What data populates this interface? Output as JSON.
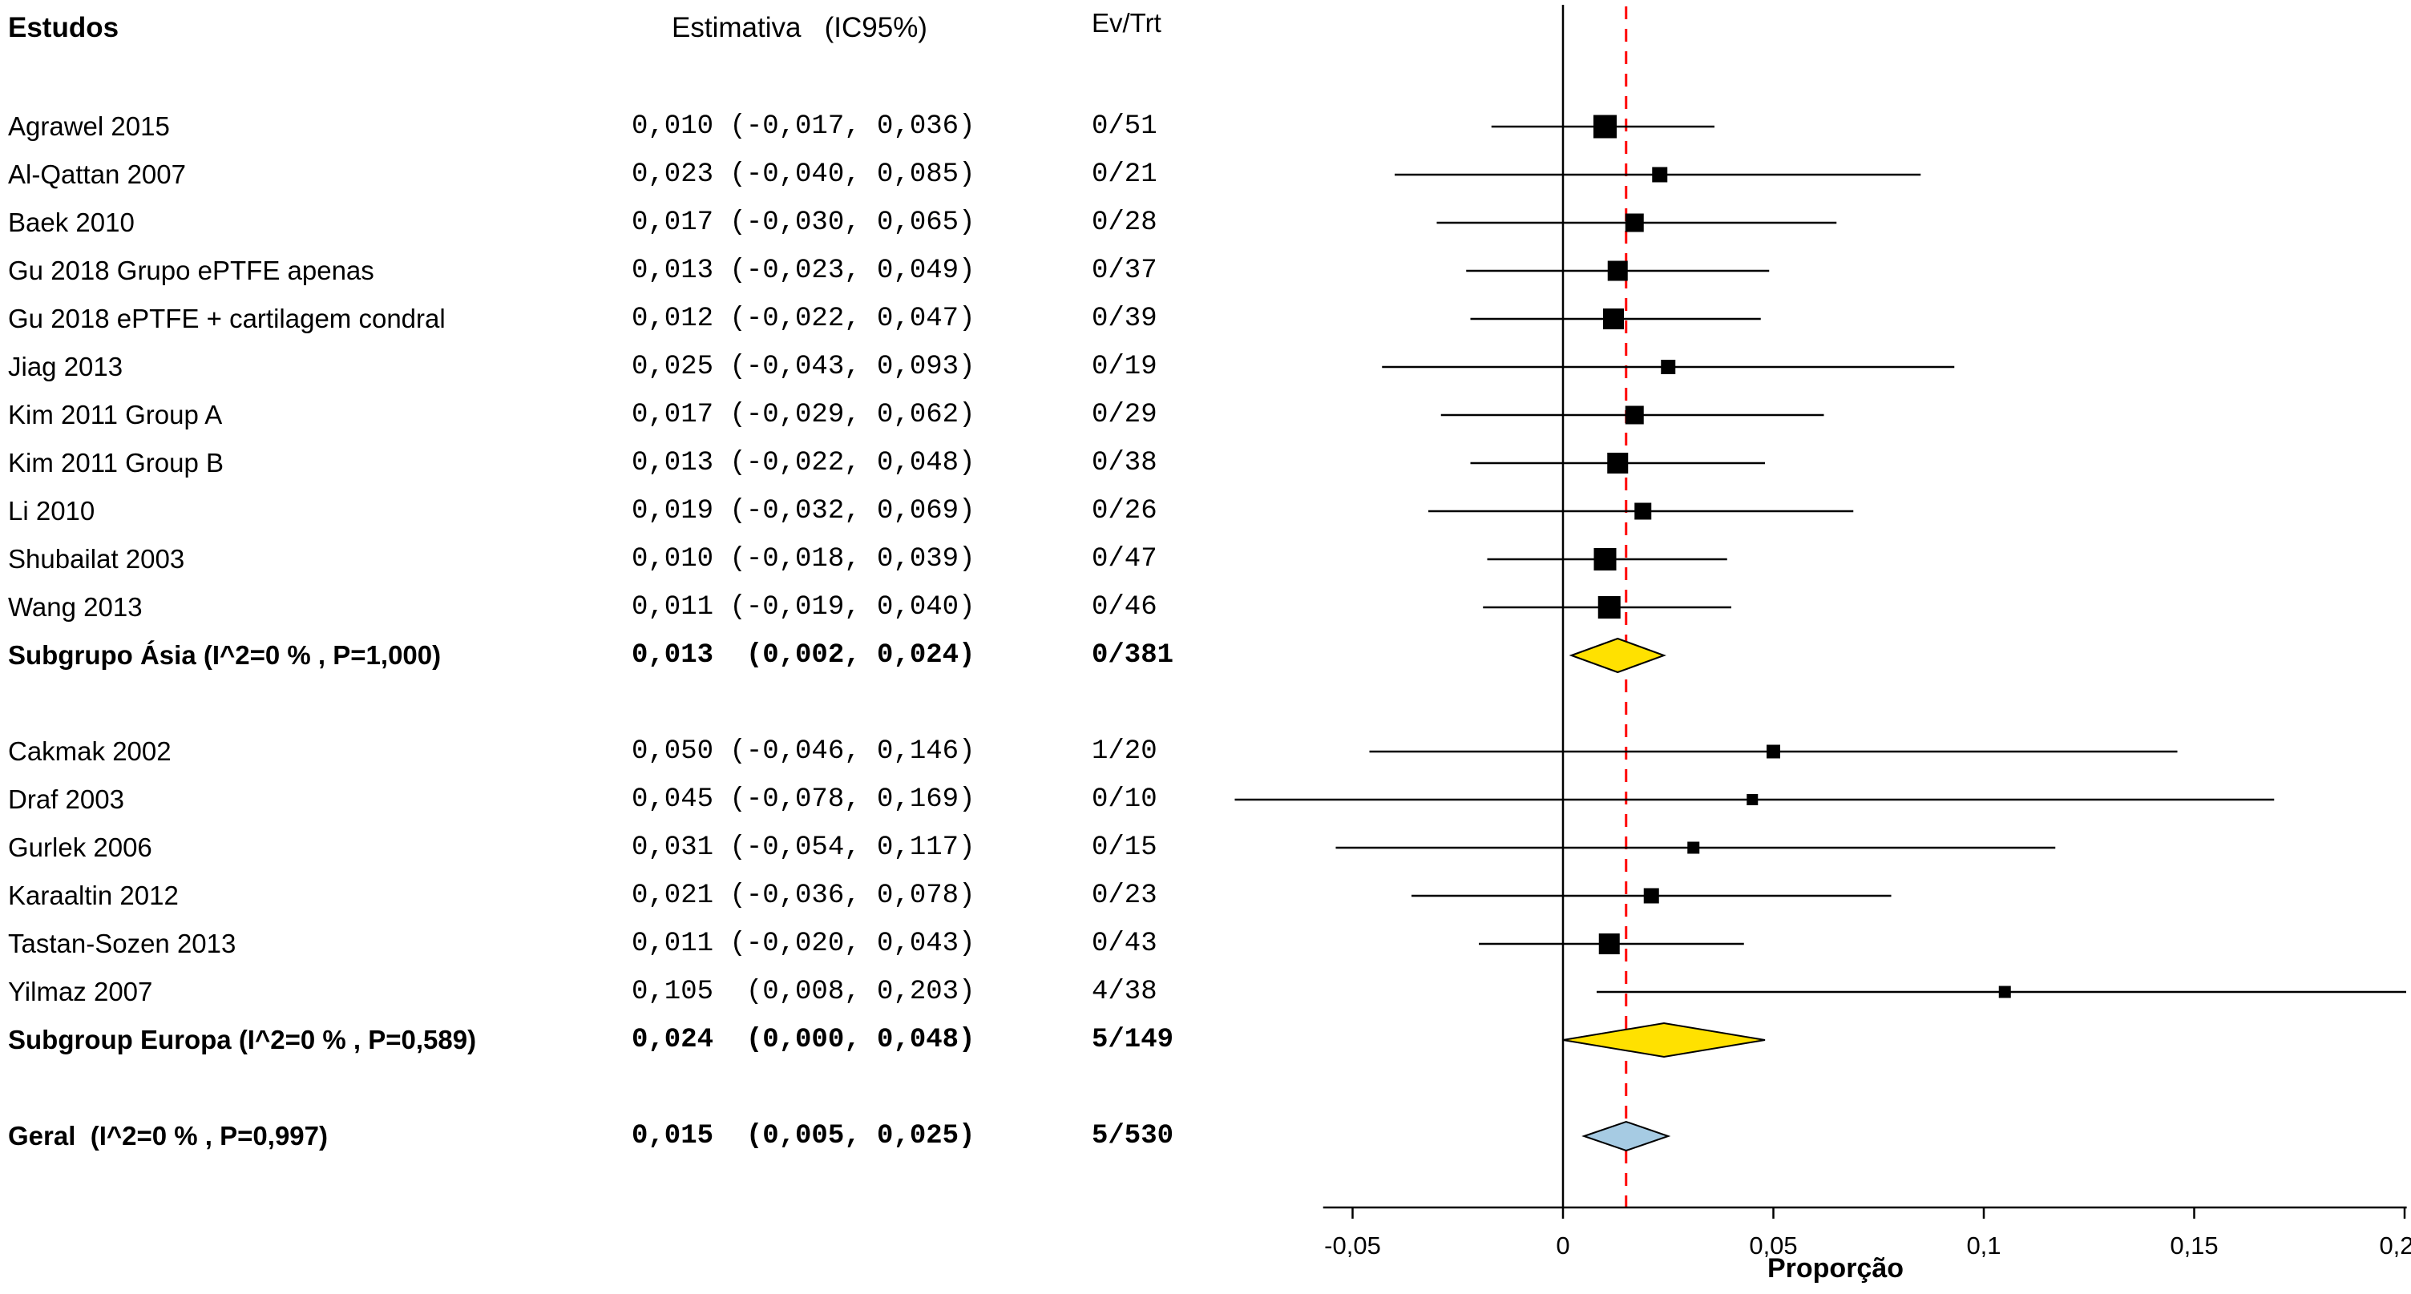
{
  "header": {
    "studies": "Estudos",
    "estimate": "Estimativa   (IC95%)",
    "evtrt": "Ev/Trt"
  },
  "chart_data": {
    "type": "forest",
    "title": "",
    "xlabel": "Proporção",
    "x_axis": {
      "min": -0.05,
      "max": 0.2,
      "ticks": [
        -0.05,
        0,
        0.05,
        0.1,
        0.15,
        0.2
      ],
      "tick_labels": [
        "-0,05",
        "0",
        "0,05",
        "0,1",
        "0,15",
        "0,2"
      ]
    },
    "zero_line": {
      "value": 0,
      "color": "#000000",
      "style": "solid"
    },
    "ref_line": {
      "value": 0.015,
      "color": "#ff0000",
      "style": "dashed"
    },
    "colors": {
      "marker": "#000000",
      "ci_line": "#000000",
      "subgroup_diamond": "#ffe100",
      "overall_diamond": "#a6cbe3",
      "diamond_border": "#000000"
    },
    "rows": [
      {
        "label": "Agrawel 2015",
        "estimate_text": "0,010 (-0,017, 0,036)",
        "evtrt": "0/51",
        "est": 0.01,
        "lo": -0.017,
        "hi": 0.036,
        "kind": "study",
        "marker_size": 29
      },
      {
        "label": "Al-Qattan 2007",
        "estimate_text": "0,023 (-0,040, 0,085)",
        "evtrt": "0/21",
        "est": 0.023,
        "lo": -0.04,
        "hi": 0.085,
        "kind": "study",
        "marker_size": 19
      },
      {
        "label": "Baek 2010",
        "estimate_text": "0,017 (-0,030, 0,065)",
        "evtrt": "0/28",
        "est": 0.017,
        "lo": -0.03,
        "hi": 0.065,
        "kind": "study",
        "marker_size": 23
      },
      {
        "label": "Gu 2018 Grupo ePTFE apenas",
        "estimate_text": "0,013 (-0,023, 0,049)",
        "evtrt": "0/37",
        "est": 0.013,
        "lo": -0.023,
        "hi": 0.049,
        "kind": "study",
        "marker_size": 25
      },
      {
        "label": "Gu 2018 ePTFE + cartilagem condral",
        "estimate_text": "0,012 (-0,022, 0,047)",
        "evtrt": "0/39",
        "est": 0.012,
        "lo": -0.022,
        "hi": 0.047,
        "kind": "study",
        "marker_size": 26
      },
      {
        "label": "Jiag 2013",
        "estimate_text": "0,025 (-0,043, 0,093)",
        "evtrt": "0/19",
        "est": 0.025,
        "lo": -0.043,
        "hi": 0.093,
        "kind": "study",
        "marker_size": 18
      },
      {
        "label": "Kim 2011 Group A",
        "estimate_text": "0,017 (-0,029, 0,062)",
        "evtrt": "0/29",
        "est": 0.017,
        "lo": -0.029,
        "hi": 0.062,
        "kind": "study",
        "marker_size": 23
      },
      {
        "label": "Kim 2011 Group B",
        "estimate_text": "0,013 (-0,022, 0,048)",
        "evtrt": "0/38",
        "est": 0.013,
        "lo": -0.022,
        "hi": 0.048,
        "kind": "study",
        "marker_size": 26
      },
      {
        "label": "Li 2010",
        "estimate_text": "0,019 (-0,032, 0,069)",
        "evtrt": "0/26",
        "est": 0.019,
        "lo": -0.032,
        "hi": 0.069,
        "kind": "study",
        "marker_size": 21
      },
      {
        "label": "Shubailat 2003",
        "estimate_text": "0,010 (-0,018, 0,039)",
        "evtrt": "0/47",
        "est": 0.01,
        "lo": -0.018,
        "hi": 0.039,
        "kind": "study",
        "marker_size": 28
      },
      {
        "label": "Wang 2013",
        "estimate_text": "0,011 (-0,019, 0,040)",
        "evtrt": "0/46",
        "est": 0.011,
        "lo": -0.019,
        "hi": 0.04,
        "kind": "study",
        "marker_size": 28
      },
      {
        "label": "Subgrupo Ásia (I^2=0 % , P=1,000)",
        "estimate_text": "0,013  (0,002, 0,024)",
        "evtrt": "0/381",
        "est": 0.013,
        "lo": 0.002,
        "hi": 0.024,
        "kind": "subgroup",
        "bold": true
      },
      {
        "label": "Cakmak 2002",
        "gap_before": true,
        "estimate_text": "0,050 (-0,046, 0,146)",
        "evtrt": "1/20",
        "est": 0.05,
        "lo": -0.046,
        "hi": 0.146,
        "kind": "study",
        "marker_size": 17
      },
      {
        "label": "Draf 2003",
        "estimate_text": "0,045 (-0,078, 0,169)",
        "evtrt": "0/10",
        "est": 0.045,
        "lo": -0.078,
        "hi": 0.169,
        "kind": "study",
        "marker_size": 14
      },
      {
        "label": "Gurlek 2006",
        "estimate_text": "0,031 (-0,054, 0,117)",
        "evtrt": "0/15",
        "est": 0.031,
        "lo": -0.054,
        "hi": 0.117,
        "kind": "study",
        "marker_size": 15
      },
      {
        "label": "Karaaltin 2012",
        "estimate_text": "0,021 (-0,036, 0,078)",
        "evtrt": "0/23",
        "est": 0.021,
        "lo": -0.036,
        "hi": 0.078,
        "kind": "study",
        "marker_size": 19
      },
      {
        "label": "Tastan-Sozen 2013",
        "estimate_text": "0,011 (-0,020, 0,043)",
        "evtrt": "0/43",
        "est": 0.011,
        "lo": -0.02,
        "hi": 0.043,
        "kind": "study",
        "marker_size": 26
      },
      {
        "label": "Yilmaz 2007",
        "estimate_text": "0,105  (0,008, 0,203)",
        "evtrt": "4/38",
        "est": 0.105,
        "lo": 0.008,
        "hi": 0.203,
        "kind": "study",
        "marker_size": 15
      },
      {
        "label": "Subgroup Europa (I^2=0 % , P=0,589)",
        "estimate_text": "0,024  (0,000, 0,048)",
        "evtrt": "5/149",
        "est": 0.024,
        "lo": 0.0,
        "hi": 0.048,
        "kind": "subgroup",
        "bold": true
      },
      {
        "label": "Geral  (I^2=0 % , P=0,997)",
        "gap_before": true,
        "estimate_text": "0,015  (0,005, 0,025)",
        "evtrt": "5/530",
        "est": 0.015,
        "lo": 0.005,
        "hi": 0.025,
        "kind": "overall",
        "bold": true
      }
    ]
  }
}
